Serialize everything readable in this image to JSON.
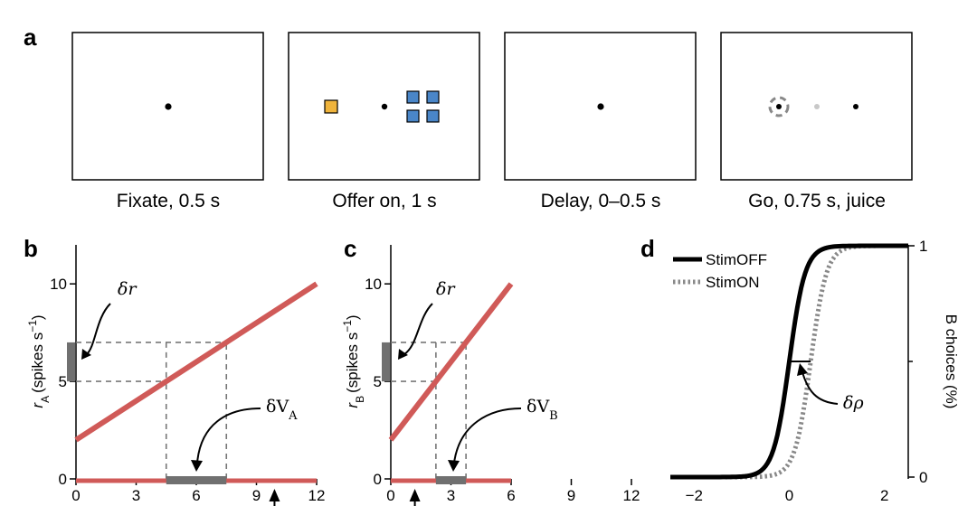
{
  "panel_a": {
    "label": "a",
    "frames": [
      {
        "caption": "Fixate, 0.5 s"
      },
      {
        "caption": "Offer on, 1 s"
      },
      {
        "caption": "Delay, 0–0.5 s"
      },
      {
        "caption": "Go, 0.75 s, juice"
      }
    ],
    "colors": {
      "offer_a": "#f0b43c",
      "offer_b": "#4a86c8",
      "fixation": "#000000",
      "go_target": "#888888"
    }
  },
  "chart_data": [
    {
      "panel": "b",
      "type": "line",
      "ylabel_main": "r",
      "ylabel_sub": "A",
      "ylabel_unit": "(spikes s",
      "ylabel_exp": "−1",
      "ylabel_close": ")",
      "xlim": [
        0,
        12
      ],
      "ylim": [
        0,
        12
      ],
      "xticks": [
        "0",
        "3",
        "6",
        "9",
        "12"
      ],
      "yticks": [
        "0",
        "5",
        "10"
      ],
      "line": {
        "x": [
          0,
          12
        ],
        "y": [
          2,
          10
        ],
        "color": "#d05a58"
      },
      "guides": {
        "x": [
          4.5,
          7.5
        ],
        "y": [
          5,
          7
        ]
      },
      "delta_r_label": "δr",
      "delta_v_main": "δV",
      "delta_v_sub": "A",
      "value_bar_x": [
        4.5,
        7.5
      ],
      "rate_bar_y": [
        5,
        7
      ],
      "baseline_x": [
        0,
        12
      ],
      "arrow_x": 9.9
    },
    {
      "panel": "c",
      "type": "line",
      "ylabel_main": "r",
      "ylabel_sub": "B",
      "ylabel_unit": "(spikes s",
      "ylabel_exp": "−1",
      "ylabel_close": ")",
      "xlim": [
        0,
        12
      ],
      "ylim": [
        0,
        12
      ],
      "xticks": [
        "0",
        "3",
        "6",
        "9",
        "12"
      ],
      "yticks": [
        "0",
        "5",
        "10"
      ],
      "line": {
        "x": [
          0,
          6
        ],
        "y": [
          2,
          10
        ],
        "color": "#d05a58"
      },
      "guides": {
        "x": [
          2.25,
          3.75
        ],
        "y": [
          5,
          7
        ]
      },
      "delta_r_label": "δr",
      "delta_v_main": "δV",
      "delta_v_sub": "B",
      "value_bar_x": [
        2.25,
        3.75
      ],
      "rate_bar_y": [
        5,
        7
      ],
      "baseline_x": [
        0,
        6
      ],
      "arrow_x": 1.2
    },
    {
      "panel": "d",
      "type": "line",
      "ylabel": "B choices (%)",
      "xlim": [
        -2.5,
        2.5
      ],
      "ylim": [
        0,
        1
      ],
      "xticks": [
        "−2",
        "0",
        "2"
      ],
      "yticks": [
        "0",
        "1"
      ],
      "legend": "top-left",
      "series": [
        {
          "name": "StimOFF",
          "center": 0.0,
          "slope": 6.0,
          "color": "#000000",
          "style": "solid"
        },
        {
          "name": "StimON",
          "center": 0.45,
          "slope": 6.0,
          "color": "#888888",
          "style": "dotted"
        }
      ],
      "delta_rho_label": "δρ",
      "delta_rho_y": 0.5
    }
  ]
}
